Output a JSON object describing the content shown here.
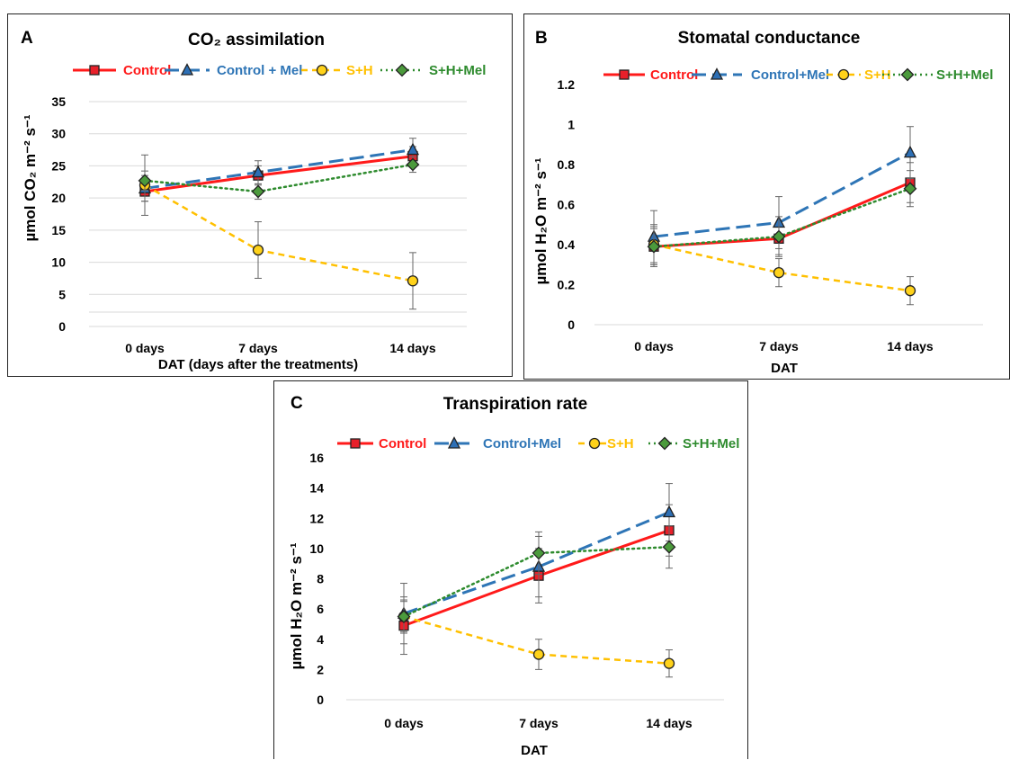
{
  "colors": {
    "control": "#ff1a1a",
    "control_mel": "#2e75b6",
    "sh": "#ffc000",
    "sh_mel": "#2e8b2e"
  },
  "chart_data": [
    {
      "panel_label": "A",
      "type": "line",
      "title": "CO₂ assimilation",
      "categories": [
        "0 days",
        "7 days",
        "14 days"
      ],
      "xlabel": "DAT (days after the treatments)",
      "ylabel": "µmol CO₂ m⁻² s⁻¹",
      "ylim": [
        0,
        35
      ],
      "yticks": [
        "0",
        "5",
        "10",
        "15",
        "20",
        "25",
        "30",
        "35"
      ],
      "grid": true,
      "legend": "top",
      "series": [
        {
          "name": "Control",
          "values": [
            21.0,
            23.5,
            26.5
          ],
          "errors": [
            1.5,
            1.5,
            1.5
          ]
        },
        {
          "name": "Control + Mel",
          "values": [
            21.5,
            24.0,
            27.5
          ],
          "errors": [
            2.0,
            1.8,
            1.8
          ]
        },
        {
          "name": "S+H",
          "values": [
            22.0,
            11.9,
            7.1
          ],
          "errors": [
            4.7,
            4.4,
            4.4
          ]
        },
        {
          "name": "S+H+Mel",
          "values": [
            22.7,
            21.0,
            25.2
          ],
          "errors": [
            1.5,
            1.2,
            1.2
          ]
        }
      ]
    },
    {
      "panel_label": "B",
      "type": "line",
      "title": "Stomatal conductance",
      "categories": [
        "0 days",
        "7 days",
        "14 days"
      ],
      "xlabel": "DAT",
      "ylabel": "µmol H₂O m⁻² s⁻¹",
      "ylim": [
        0,
        1.2
      ],
      "yticks": [
        "0",
        "0.2",
        "0.4",
        "0.6",
        "0.8",
        "1",
        "1.2"
      ],
      "grid": false,
      "legend": "top",
      "series": [
        {
          "name": "Control",
          "values": [
            0.39,
            0.43,
            0.71
          ],
          "errors": [
            0.09,
            0.08,
            0.1
          ]
        },
        {
          "name": "Control+Mel",
          "values": [
            0.44,
            0.51,
            0.86
          ],
          "errors": [
            0.13,
            0.13,
            0.13
          ]
        },
        {
          "name": "S+H",
          "values": [
            0.4,
            0.26,
            0.17
          ],
          "errors": [
            0.1,
            0.07,
            0.07
          ]
        },
        {
          "name": "S+H+Mel",
          "values": [
            0.39,
            0.44,
            0.68
          ],
          "errors": [
            0.1,
            0.1,
            0.09
          ]
        }
      ]
    },
    {
      "panel_label": "C",
      "type": "line",
      "title": "Transpiration rate",
      "categories": [
        "0 days",
        "7 days",
        "14 days"
      ],
      "xlabel": "DAT",
      "ylabel": "µmol H₂O m⁻² s⁻¹",
      "ylim": [
        0,
        16
      ],
      "yticks": [
        "0",
        "2",
        "4",
        "6",
        "8",
        "10",
        "12",
        "14",
        "16"
      ],
      "grid": false,
      "legend": "top",
      "series": [
        {
          "name": "Control",
          "values": [
            4.9,
            8.2,
            11.2
          ],
          "errors": [
            1.9,
            1.8,
            1.7
          ]
        },
        {
          "name": "Control+Mel",
          "values": [
            5.7,
            8.8,
            12.4
          ],
          "errors": [
            2.0,
            2.0,
            1.9
          ]
        },
        {
          "name": "S+H",
          "values": [
            5.5,
            3.0,
            2.4
          ],
          "errors": [
            1.0,
            1.0,
            0.9
          ]
        },
        {
          "name": "S+H+Mel",
          "values": [
            5.5,
            9.7,
            10.1
          ],
          "errors": [
            1.1,
            1.4,
            1.4
          ]
        }
      ]
    }
  ]
}
